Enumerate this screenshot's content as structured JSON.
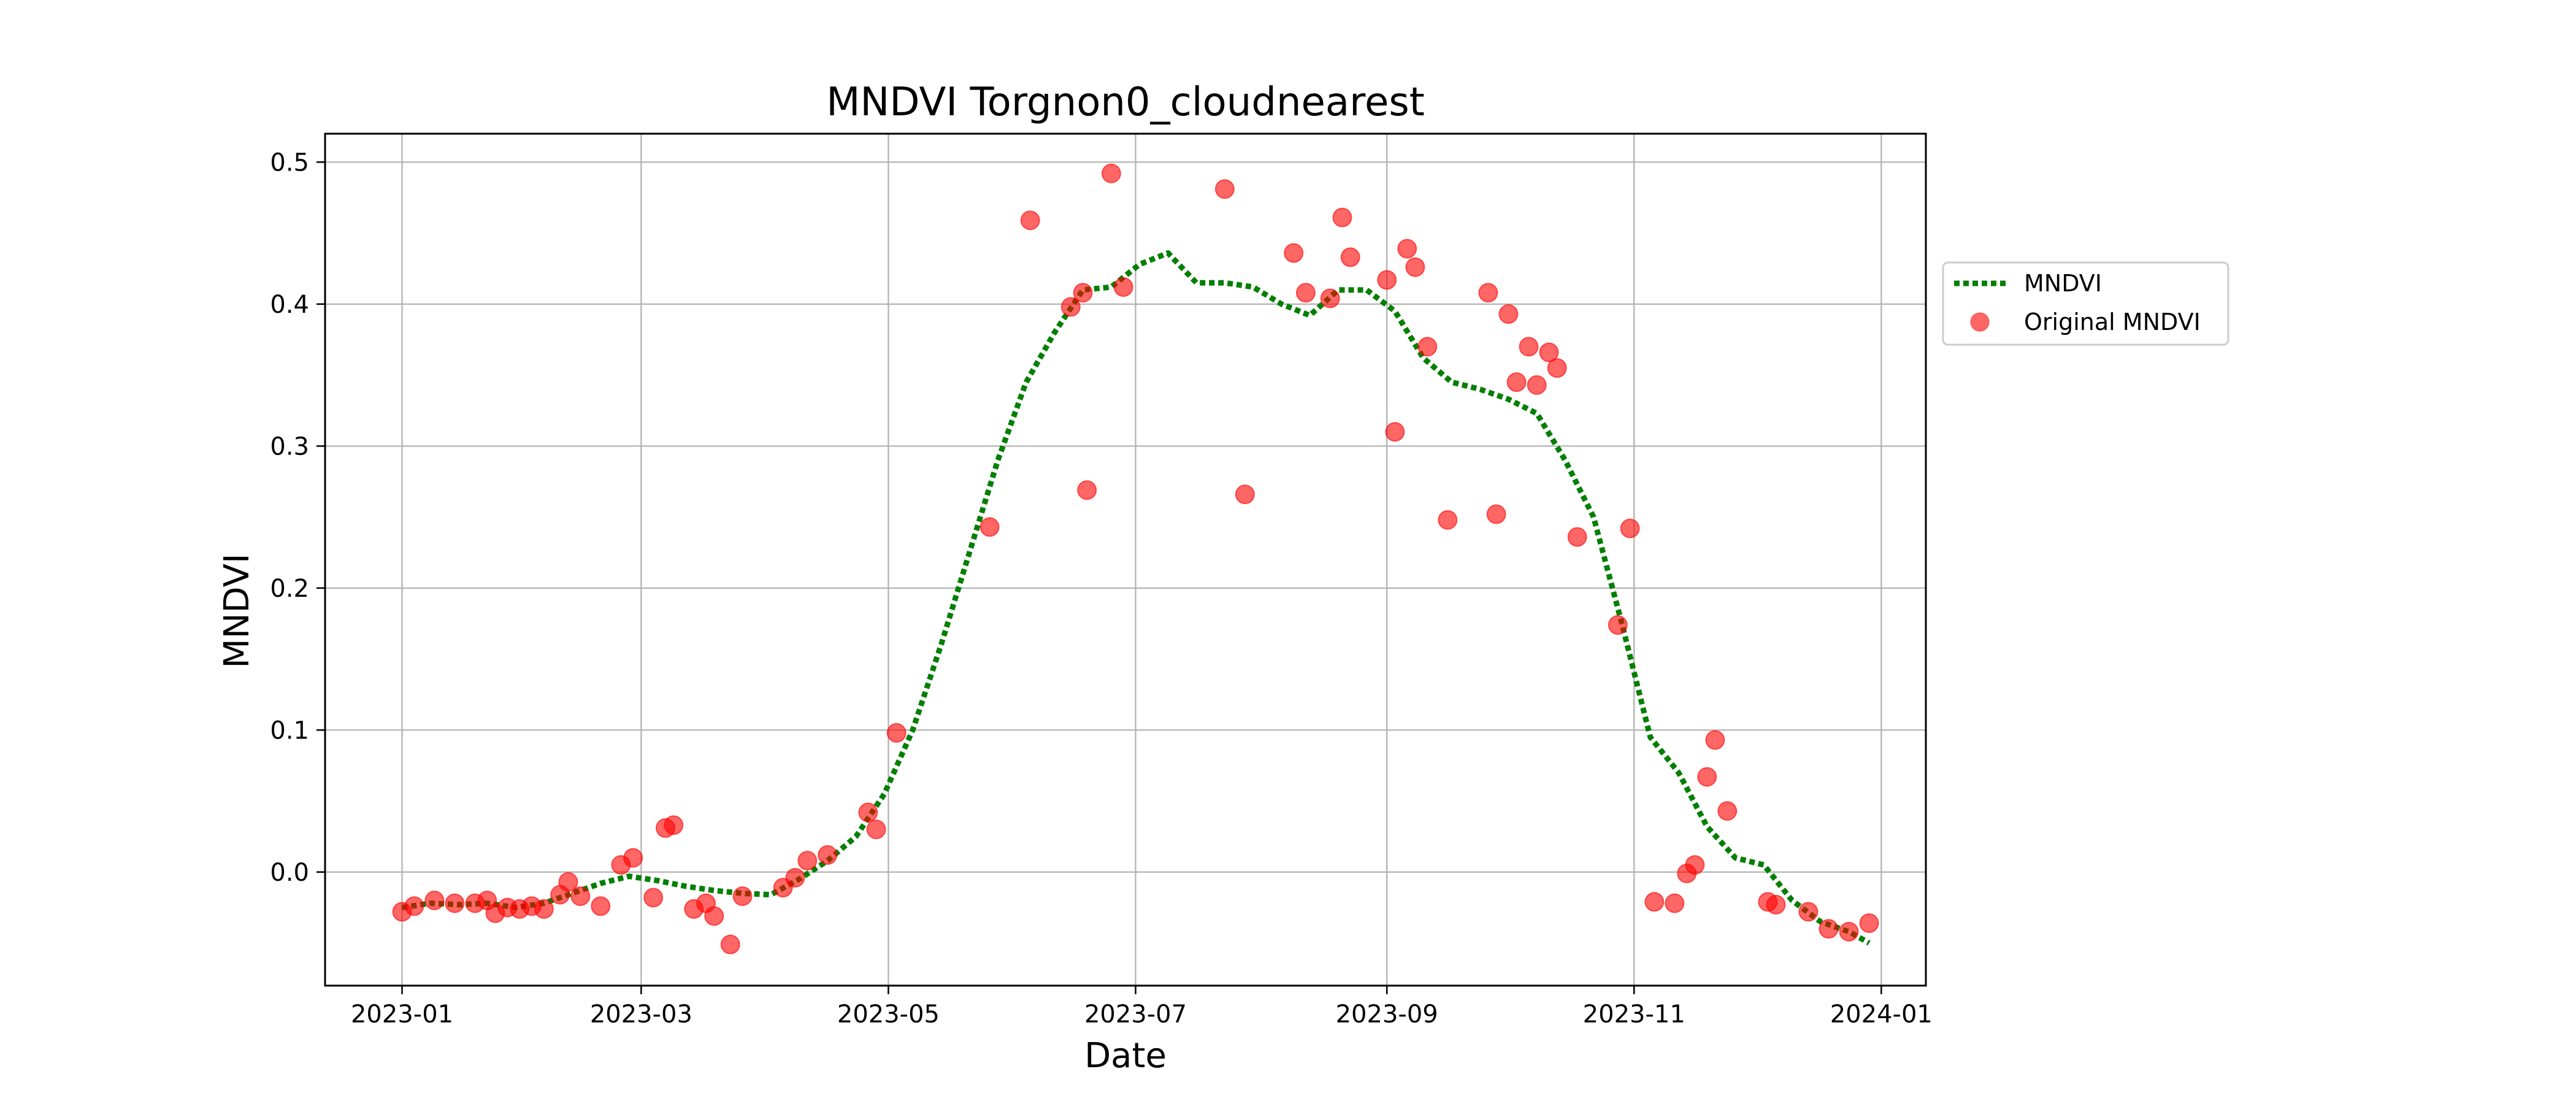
{
  "chart_data": {
    "type": "line",
    "title": "MNDVI Torgnon0_cloudnearest",
    "xlabel": "Date",
    "ylabel": "MNDVI",
    "x_scale": "date",
    "xlim": [
      "2022-12-13",
      "2024-01-12"
    ],
    "ylim": [
      -0.08,
      0.52
    ],
    "x_ticks": [
      "2023-01-01",
      "2023-03-01",
      "2023-05-01",
      "2023-07-01",
      "2023-09-01",
      "2023-11-01",
      "2024-01-01"
    ],
    "x_tick_labels": [
      "2023-01",
      "2023-03",
      "2023-05",
      "2023-07",
      "2023-09",
      "2023-11",
      "2024-01"
    ],
    "y_ticks": [
      0.0,
      0.1,
      0.2,
      0.3,
      0.4,
      0.5
    ],
    "y_tick_labels": [
      "0.0",
      "0.1",
      "0.2",
      "0.3",
      "0.4",
      "0.5"
    ],
    "grid": true,
    "legend": {
      "placement": "outside-right",
      "entries": [
        "MNDVI",
        "Original MNDVI"
      ]
    },
    "colors": {
      "line": "#007f00",
      "points": "#ff0000"
    },
    "series": [
      {
        "name": "MNDVI",
        "style": "dotted-line",
        "points": [
          [
            "2023-01-01",
            -0.025
          ],
          [
            "2023-01-08",
            -0.022
          ],
          [
            "2023-01-15",
            -0.023
          ],
          [
            "2023-01-22",
            -0.022
          ],
          [
            "2023-01-29",
            -0.025
          ],
          [
            "2023-02-05",
            -0.022
          ],
          [
            "2023-02-12",
            -0.015
          ],
          [
            "2023-02-19",
            -0.008
          ],
          [
            "2023-02-26",
            -0.003
          ],
          [
            "2023-03-05",
            -0.006
          ],
          [
            "2023-03-12",
            -0.01
          ],
          [
            "2023-03-19",
            -0.013
          ],
          [
            "2023-03-26",
            -0.015
          ],
          [
            "2023-04-02",
            -0.016
          ],
          [
            "2023-04-09",
            -0.005
          ],
          [
            "2023-04-16",
            0.008
          ],
          [
            "2023-04-23",
            0.025
          ],
          [
            "2023-04-30",
            0.055
          ],
          [
            "2023-05-07",
            0.1
          ],
          [
            "2023-05-14",
            0.16
          ],
          [
            "2023-05-21",
            0.225
          ],
          [
            "2023-05-28",
            0.29
          ],
          [
            "2023-06-04",
            0.345
          ],
          [
            "2023-06-11",
            0.38
          ],
          [
            "2023-06-18",
            0.41
          ],
          [
            "2023-06-25",
            0.412
          ],
          [
            "2023-07-02",
            0.428
          ],
          [
            "2023-07-09",
            0.436
          ],
          [
            "2023-07-16",
            0.415
          ],
          [
            "2023-07-23",
            0.415
          ],
          [
            "2023-07-30",
            0.412
          ],
          [
            "2023-08-06",
            0.4
          ],
          [
            "2023-08-13",
            0.392
          ],
          [
            "2023-08-20",
            0.41
          ],
          [
            "2023-08-27",
            0.41
          ],
          [
            "2023-09-03",
            0.395
          ],
          [
            "2023-09-10",
            0.362
          ],
          [
            "2023-09-17",
            0.345
          ],
          [
            "2023-09-24",
            0.34
          ],
          [
            "2023-10-01",
            0.333
          ],
          [
            "2023-10-08",
            0.323
          ],
          [
            "2023-10-15",
            0.29
          ],
          [
            "2023-10-22",
            0.25
          ],
          [
            "2023-10-29",
            0.175
          ],
          [
            "2023-11-05",
            0.095
          ],
          [
            "2023-11-12",
            0.07
          ],
          [
            "2023-11-19",
            0.032
          ],
          [
            "2023-11-26",
            0.01
          ],
          [
            "2023-12-03",
            0.005
          ],
          [
            "2023-12-10",
            -0.02
          ],
          [
            "2023-12-17",
            -0.035
          ],
          [
            "2023-12-24",
            -0.042
          ],
          [
            "2023-12-29",
            -0.05
          ]
        ]
      },
      {
        "name": "Original MNDVI",
        "style": "scatter",
        "points": [
          [
            "2023-01-01",
            -0.028
          ],
          [
            "2023-01-04",
            -0.024
          ],
          [
            "2023-01-09",
            -0.02
          ],
          [
            "2023-01-14",
            -0.022
          ],
          [
            "2023-01-19",
            -0.022
          ],
          [
            "2023-01-22",
            -0.02
          ],
          [
            "2023-01-24",
            -0.029
          ],
          [
            "2023-01-27",
            -0.025
          ],
          [
            "2023-01-30",
            -0.026
          ],
          [
            "2023-02-02",
            -0.024
          ],
          [
            "2023-02-05",
            -0.026
          ],
          [
            "2023-02-09",
            -0.016
          ],
          [
            "2023-02-11",
            -0.007
          ],
          [
            "2023-02-14",
            -0.017
          ],
          [
            "2023-02-19",
            -0.024
          ],
          [
            "2023-02-24",
            0.005
          ],
          [
            "2023-02-27",
            0.01
          ],
          [
            "2023-03-04",
            -0.018
          ],
          [
            "2023-03-07",
            0.031
          ],
          [
            "2023-03-09",
            0.033
          ],
          [
            "2023-03-14",
            -0.026
          ],
          [
            "2023-03-17",
            -0.022
          ],
          [
            "2023-03-19",
            -0.031
          ],
          [
            "2023-03-23",
            -0.051
          ],
          [
            "2023-03-26",
            -0.017
          ],
          [
            "2023-04-05",
            -0.011
          ],
          [
            "2023-04-08",
            -0.004
          ],
          [
            "2023-04-11",
            0.008
          ],
          [
            "2023-04-16",
            0.012
          ],
          [
            "2023-04-26",
            0.042
          ],
          [
            "2023-04-28",
            0.03
          ],
          [
            "2023-05-03",
            0.098
          ],
          [
            "2023-05-26",
            0.243
          ],
          [
            "2023-06-05",
            0.459
          ],
          [
            "2023-06-15",
            0.398
          ],
          [
            "2023-06-18",
            0.408
          ],
          [
            "2023-06-19",
            0.269
          ],
          [
            "2023-06-25",
            0.492
          ],
          [
            "2023-06-28",
            0.412
          ],
          [
            "2023-07-23",
            0.481
          ],
          [
            "2023-07-28",
            0.266
          ],
          [
            "2023-08-09",
            0.436
          ],
          [
            "2023-08-12",
            0.408
          ],
          [
            "2023-08-18",
            0.404
          ],
          [
            "2023-08-21",
            0.461
          ],
          [
            "2023-08-23",
            0.433
          ],
          [
            "2023-09-01",
            0.417
          ],
          [
            "2023-09-03",
            0.31
          ],
          [
            "2023-09-06",
            0.439
          ],
          [
            "2023-09-08",
            0.426
          ],
          [
            "2023-09-11",
            0.37
          ],
          [
            "2023-09-16",
            0.248
          ],
          [
            "2023-09-26",
            0.408
          ],
          [
            "2023-09-28",
            0.252
          ],
          [
            "2023-10-01",
            0.393
          ],
          [
            "2023-10-03",
            0.345
          ],
          [
            "2023-10-06",
            0.37
          ],
          [
            "2023-10-08",
            0.343
          ],
          [
            "2023-10-11",
            0.366
          ],
          [
            "2023-10-13",
            0.355
          ],
          [
            "2023-10-18",
            0.236
          ],
          [
            "2023-10-28",
            0.174
          ],
          [
            "2023-10-31",
            0.242
          ],
          [
            "2023-11-06",
            -0.021
          ],
          [
            "2023-11-11",
            -0.022
          ],
          [
            "2023-11-14",
            -0.001
          ],
          [
            "2023-11-16",
            0.005
          ],
          [
            "2023-11-19",
            0.067
          ],
          [
            "2023-11-21",
            0.093
          ],
          [
            "2023-11-24",
            0.043
          ],
          [
            "2023-12-04",
            -0.021
          ],
          [
            "2023-12-06",
            -0.023
          ],
          [
            "2023-12-14",
            -0.028
          ],
          [
            "2023-12-19",
            -0.04
          ],
          [
            "2023-12-24",
            -0.042
          ],
          [
            "2023-12-29",
            -0.036
          ]
        ]
      }
    ]
  }
}
